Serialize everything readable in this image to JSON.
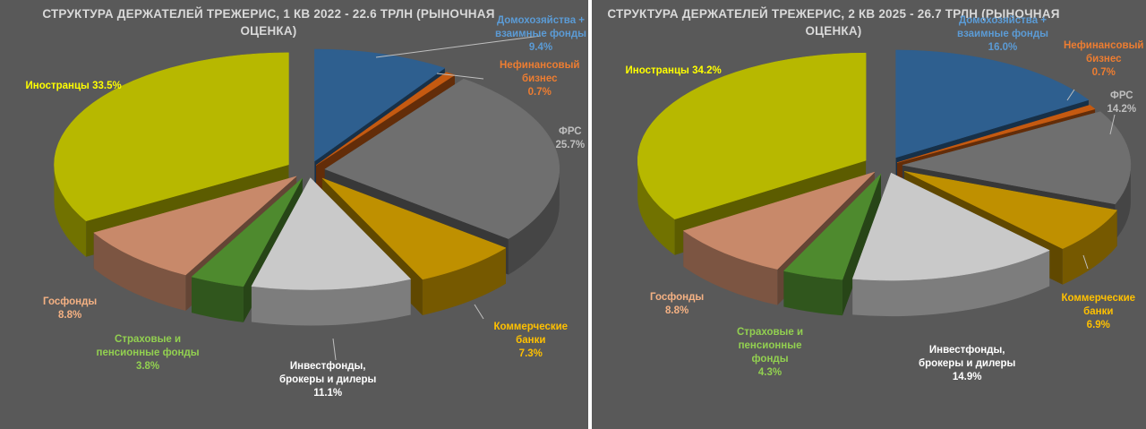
{
  "chart_data": [
    {
      "type": "pie",
      "title": "СТРУКТУРА ДЕРЖАТЕЛЕЙ ТРЕЖЕРИС, 1 КВ 2022 - 22.6 ТРЛН (РЫНОЧНАЯ ОЦЕНКА)",
      "title_lines": [
        "СТРУКТУРА ДЕРЖАТЕЛЕЙ ТРЕЖЕРИС, 1 КВ 2022 - 22.6 ТРЛН (РЫНОЧНАЯ",
        "ОЦЕНКА)"
      ],
      "slices": [
        {
          "name_lines": [
            "Домохозяйства +",
            "взаимные фонды"
          ],
          "pct": "9.4%",
          "value": 9.4,
          "color": "#2e5f8f",
          "label_color": "#5b9bd5"
        },
        {
          "name_lines": [
            "Нефинансовый",
            "бизнес"
          ],
          "pct": "0.7%",
          "value": 0.7,
          "color": "#c55a11",
          "label_color": "#ed7d31"
        },
        {
          "name_lines": [
            "ФРС"
          ],
          "pct": "25.7%",
          "value": 25.7,
          "color": "#6f6f6f",
          "label_color": "#bfbfbf"
        },
        {
          "name_lines": [
            "Коммерческие",
            "банки"
          ],
          "pct": "7.3%",
          "value": 7.3,
          "color": "#bf9000",
          "label_color": "#ffc000"
        },
        {
          "name_lines": [
            "Инвестфонды,",
            "брокеры и дилеры"
          ],
          "pct": "11.1%",
          "value": 11.1,
          "color": "#c9c9c9",
          "label_color": "#ffffff"
        },
        {
          "name_lines": [
            "Страховые и",
            "пенсионные фонды"
          ],
          "pct": "3.8%",
          "value": 3.8,
          "color": "#4e8a2e",
          "label_color": "#92d050"
        },
        {
          "name_lines": [
            "Госфонды"
          ],
          "pct": "8.8%",
          "value": 8.8,
          "color": "#c8896a",
          "label_color": "#f4b183"
        },
        {
          "name_lines": [
            "Иностранцы"
          ],
          "pct": "33.5%",
          "value": 33.5,
          "color": "#b7b800",
          "label_color": "#ffff00"
        }
      ]
    },
    {
      "type": "pie",
      "title": "СТРУКТУРА ДЕРЖАТЕЛЕЙ ТРЕЖЕРИС, 2 КВ 2025 - 26.7 ТРЛН (РЫНОЧНАЯ ОЦЕНКА)",
      "title_lines": [
        "СТРУКТУРА ДЕРЖАТЕЛЕЙ ТРЕЖЕРИС, 2 КВ 2025 - 26.7 ТРЛН (РЫНОЧНАЯ",
        "ОЦЕНКА)"
      ],
      "slices": [
        {
          "name_lines": [
            "Домохозяйства +",
            "взаимные фонды"
          ],
          "pct": "16.0%",
          "value": 16.0,
          "color": "#2e5f8f",
          "label_color": "#5b9bd5"
        },
        {
          "name_lines": [
            "Нефинансовый",
            "бизнес"
          ],
          "pct": "0.7%",
          "value": 0.7,
          "color": "#c55a11",
          "label_color": "#ed7d31"
        },
        {
          "name_lines": [
            "ФРС"
          ],
          "pct": "14.2%",
          "value": 14.2,
          "color": "#6f6f6f",
          "label_color": "#bfbfbf"
        },
        {
          "name_lines": [
            "Коммерческие",
            "банки"
          ],
          "pct": "6.9%",
          "value": 6.9,
          "color": "#bf9000",
          "label_color": "#ffc000"
        },
        {
          "name_lines": [
            "Инвестфонды,",
            "брокеры и дилеры"
          ],
          "pct": "14.9%",
          "value": 14.9,
          "color": "#c9c9c9",
          "label_color": "#ffffff"
        },
        {
          "name_lines": [
            "Страховые и",
            "пенсионные",
            "фонды"
          ],
          "pct": "4.3%",
          "value": 4.3,
          "color": "#4e8a2e",
          "label_color": "#92d050"
        },
        {
          "name_lines": [
            "Госфонды"
          ],
          "pct": "8.8%",
          "value": 8.8,
          "color": "#c8896a",
          "label_color": "#f4b183"
        },
        {
          "name_lines": [
            "Иностранцы"
          ],
          "pct": "34.2%",
          "value": 34.2,
          "color": "#b7b800",
          "label_color": "#ffff00"
        }
      ]
    }
  ]
}
